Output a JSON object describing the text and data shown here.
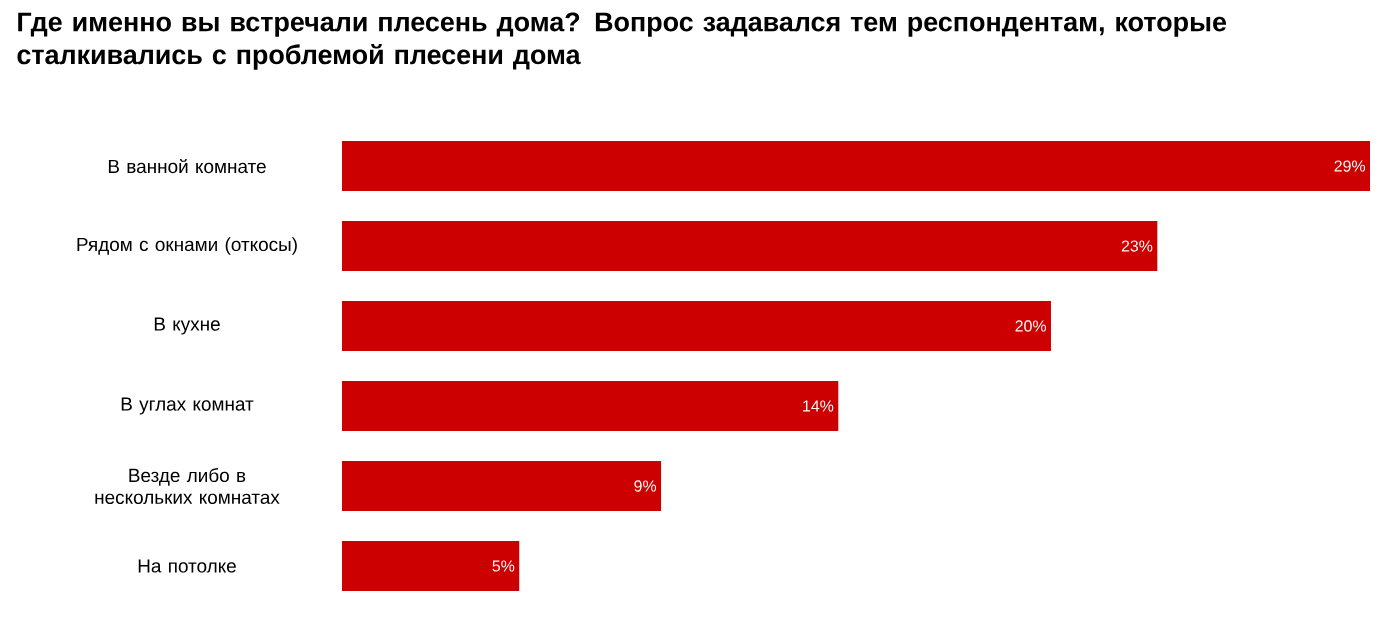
{
  "chart_data": {
    "type": "bar",
    "orientation": "horizontal",
    "title": "Где именно вы встречали плесень дома? Вопрос задавался тем респондентам, которые сталкивались с проблемой плесени дома",
    "categories": [
      "В ванной комнате",
      "Рядом с окнами (откосы)",
      "В кухне",
      "В углах комнат",
      "Везде либо в нескольких комнатах",
      "На потолке"
    ],
    "values": [
      29,
      23,
      20,
      14,
      9,
      5
    ],
    "value_labels": [
      "29%",
      "23%",
      "20%",
      "14%",
      "9%",
      "5%"
    ],
    "color": "#cc0000"
  }
}
